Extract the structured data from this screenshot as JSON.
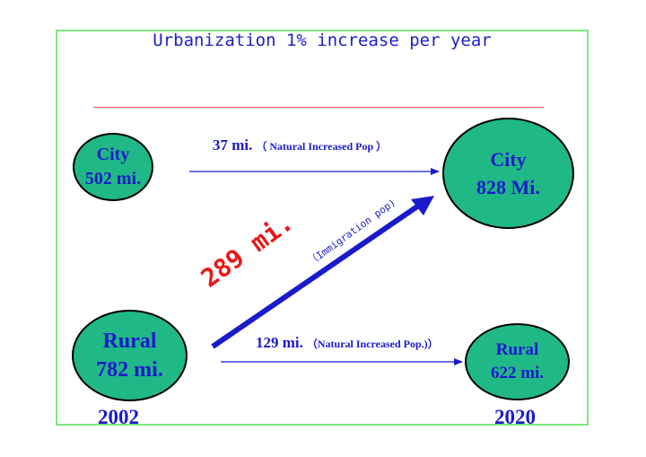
{
  "title": "Urbanization 1% increase per year",
  "nodes": {
    "city_2002": {
      "line1": "City",
      "line2": "502 mi."
    },
    "city_2020": {
      "line1": "City",
      "line2": "828 Mi."
    },
    "rural_2002": {
      "line1": "Rural",
      "line2": "782 mi."
    },
    "rural_2020": {
      "line1": "Rural",
      "line2": "622 mi."
    }
  },
  "years": {
    "start": "2002",
    "end": "2020"
  },
  "flows": {
    "city_natural": {
      "value": "37 mi.",
      "note": "（ Natural Increased Pop ）"
    },
    "rural_natural": {
      "value": "129 mi.",
      "note": "（Natural Increased Pop.)）"
    },
    "immigration": {
      "value": "289 mi.",
      "note": "（Immigration pop)"
    }
  },
  "colors": {
    "frame": "#7ee87e",
    "node_fill": "#1fb886",
    "text": "#1a1acc",
    "accent_red": "#e81818",
    "arrow": "#1a1acc"
  }
}
